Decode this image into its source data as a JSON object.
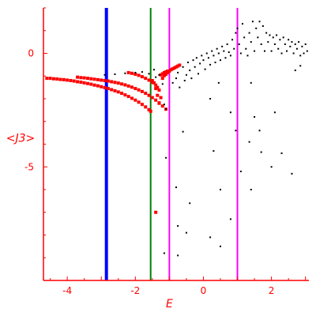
{
  "chart_data": {
    "type": "scatter",
    "title": "",
    "xlabel": "E",
    "ylabel": "<J3>",
    "xlim": [
      -4.7,
      3.1
    ],
    "ylim": [
      -10,
      2.0
    ],
    "x_ticks": [
      -4,
      -2,
      0,
      2
    ],
    "x_tick_labels": [
      "-4",
      "-2",
      "0",
      "2"
    ],
    "y_ticks": [
      0,
      -5
    ],
    "y_tick_labels": [
      "0",
      "-5"
    ],
    "grid": false,
    "legend": "none",
    "colors": {
      "axis": "#ff0000",
      "red_series": "#ff0000",
      "black_series": "#000000",
      "vline_blue": "#0000ff",
      "vline_green": "#008000",
      "vline_magenta": "#ff00ff"
    },
    "vertical_lines": [
      {
        "x": -2.85,
        "color": "#0000ff"
      },
      {
        "x": -1.55,
        "color": "#008000"
      },
      {
        "x": -1.0,
        "color": "#ff00ff"
      },
      {
        "x": 1.0,
        "color": "#ff00ff"
      }
    ],
    "series": [
      {
        "color": "#ff0000",
        "points": [
          [
            -4.6,
            -1.1
          ],
          [
            -4.5,
            -1.1
          ],
          [
            -4.4,
            -1.12
          ],
          [
            -4.3,
            -1.13
          ],
          [
            -4.2,
            -1.15
          ],
          [
            -4.1,
            -1.16
          ],
          [
            -4.0,
            -1.18
          ],
          [
            -3.9,
            -1.2
          ],
          [
            -3.8,
            -1.22
          ],
          [
            -3.7,
            -1.25
          ],
          [
            -3.6,
            -1.27
          ],
          [
            -3.5,
            -1.3
          ],
          [
            -3.4,
            -1.33
          ],
          [
            -3.3,
            -1.36
          ],
          [
            -3.2,
            -1.4
          ],
          [
            -3.1,
            -1.43
          ],
          [
            -3.0,
            -1.47
          ],
          [
            -2.9,
            -1.51
          ],
          [
            -2.8,
            -1.55
          ],
          [
            -2.7,
            -1.6
          ],
          [
            -2.6,
            -1.65
          ],
          [
            -2.5,
            -1.7
          ],
          [
            -2.4,
            -1.76
          ],
          [
            -2.3,
            -1.83
          ],
          [
            -2.2,
            -1.9
          ],
          [
            -2.1,
            -1.98
          ],
          [
            -2.0,
            -2.06
          ],
          [
            -1.9,
            -2.15
          ],
          [
            -1.8,
            -2.25
          ],
          [
            -1.7,
            -2.36
          ],
          [
            -1.6,
            -2.48
          ],
          [
            -1.55,
            -2.55
          ],
          [
            -3.7,
            -1.05
          ],
          [
            -3.6,
            -1.07
          ],
          [
            -3.5,
            -1.08
          ],
          [
            -3.4,
            -1.1
          ],
          [
            -3.3,
            -1.12
          ],
          [
            -3.2,
            -1.14
          ],
          [
            -3.1,
            -1.16
          ],
          [
            -3.0,
            -1.18
          ],
          [
            -2.9,
            -1.2
          ],
          [
            -2.8,
            -1.22
          ],
          [
            -2.7,
            -1.25
          ],
          [
            -2.6,
            -1.28
          ],
          [
            -2.5,
            -1.31
          ],
          [
            -2.4,
            -1.35
          ],
          [
            -2.3,
            -1.39
          ],
          [
            -2.2,
            -1.44
          ],
          [
            -2.1,
            -1.49
          ],
          [
            -2.0,
            -1.55
          ],
          [
            -1.9,
            -1.61
          ],
          [
            -1.8,
            -1.68
          ],
          [
            -1.7,
            -1.76
          ],
          [
            -1.6,
            -1.85
          ],
          [
            -1.5,
            -1.95
          ],
          [
            -1.4,
            -2.06
          ],
          [
            -1.3,
            -2.18
          ],
          [
            -1.2,
            -2.32
          ],
          [
            -1.1,
            -2.46
          ],
          [
            -2.2,
            -0.85
          ],
          [
            -2.1,
            -0.88
          ],
          [
            -2.0,
            -0.92
          ],
          [
            -1.9,
            -0.97
          ],
          [
            -1.8,
            -1.03
          ],
          [
            -1.7,
            -1.1
          ],
          [
            -1.6,
            -1.18
          ],
          [
            -1.5,
            -1.28
          ],
          [
            -1.4,
            -1.4
          ],
          [
            -1.35,
            -1.5
          ],
          [
            -1.3,
            -1.62
          ],
          [
            -1.5,
            -1.2
          ],
          [
            -1.45,
            -1.3
          ],
          [
            -1.4,
            -1.55
          ],
          [
            -1.35,
            -1.85
          ],
          [
            -1.3,
            -2.2
          ],
          [
            -1.25,
            -1.95
          ],
          [
            -1.2,
            -1.1
          ],
          [
            -1.15,
            -0.98
          ],
          [
            -1.1,
            -0.92
          ],
          [
            -1.05,
            -0.85
          ],
          [
            -1.0,
            -0.78
          ],
          [
            -0.95,
            -0.72
          ],
          [
            -0.9,
            -0.68
          ],
          [
            -0.85,
            -0.64
          ],
          [
            -0.8,
            -0.6
          ],
          [
            -0.75,
            -0.56
          ],
          [
            -0.7,
            -0.52
          ],
          [
            -1.25,
            -0.95
          ],
          [
            -1.2,
            -0.9
          ],
          [
            -1.15,
            -0.85
          ],
          [
            -1.1,
            -0.82
          ],
          [
            -1.05,
            -0.78
          ],
          [
            -1.4,
            -7.0
          ]
        ]
      },
      {
        "color": "#000000",
        "points": [
          [
            -2.9,
            -0.95
          ],
          [
            -2.6,
            -0.92
          ],
          [
            -2.3,
            -0.88
          ],
          [
            -2.0,
            -0.85
          ],
          [
            -1.8,
            -0.82
          ],
          [
            -1.6,
            -0.9
          ],
          [
            -1.45,
            -0.72
          ],
          [
            -1.4,
            -1.05
          ],
          [
            -1.3,
            -0.95
          ],
          [
            -1.2,
            -1.35
          ],
          [
            -1.15,
            -2.25
          ],
          [
            -1.1,
            -2.45
          ],
          [
            -0.9,
            -1.3
          ],
          [
            -0.8,
            -1.1
          ],
          [
            -0.75,
            -0.85
          ],
          [
            -0.7,
            -1.5
          ],
          [
            -0.6,
            -0.6
          ],
          [
            -0.55,
            -1.2
          ],
          [
            -0.5,
            -0.95
          ],
          [
            -0.45,
            -0.4
          ],
          [
            -0.4,
            -0.75
          ],
          [
            -0.35,
            -1.1
          ],
          [
            -0.3,
            -0.3
          ],
          [
            -0.25,
            -0.6
          ],
          [
            -0.2,
            -0.2
          ],
          [
            -0.15,
            -0.9
          ],
          [
            -0.1,
            -0.45
          ],
          [
            -0.05,
            -0.1
          ],
          [
            0.0,
            -0.3
          ],
          [
            0.05,
            -0.7
          ],
          [
            0.1,
            0.0
          ],
          [
            0.15,
            -0.2
          ],
          [
            0.2,
            -0.5
          ],
          [
            0.25,
            0.1
          ],
          [
            0.3,
            -0.1
          ],
          [
            0.35,
            -0.4
          ],
          [
            0.4,
            0.2
          ],
          [
            0.45,
            0.0
          ],
          [
            0.5,
            -0.3
          ],
          [
            0.55,
            0.3
          ],
          [
            0.6,
            0.1
          ],
          [
            0.65,
            -0.2
          ],
          [
            0.7,
            0.4
          ],
          [
            0.75,
            0.05
          ],
          [
            0.8,
            -0.1
          ],
          [
            0.85,
            0.6
          ],
          [
            0.9,
            0.2
          ],
          [
            0.95,
            0.9
          ],
          [
            1.0,
            1.1
          ],
          [
            1.05,
            0.4
          ],
          [
            1.1,
            0.0
          ],
          [
            1.15,
            1.3
          ],
          [
            1.2,
            0.7
          ],
          [
            1.25,
            0.2
          ],
          [
            1.3,
            -0.1
          ],
          [
            1.35,
            0.9
          ],
          [
            1.4,
            0.5
          ],
          [
            1.45,
            1.4
          ],
          [
            1.5,
            0.1
          ],
          [
            1.55,
            1.1
          ],
          [
            1.6,
            0.7
          ],
          [
            1.65,
            1.4
          ],
          [
            1.7,
            0.4
          ],
          [
            1.75,
            1.2
          ],
          [
            1.8,
            0.1
          ],
          [
            1.85,
            0.9
          ],
          [
            1.9,
            0.5
          ],
          [
            1.95,
            0.8
          ],
          [
            2.0,
            0.1
          ],
          [
            2.05,
            0.7
          ],
          [
            2.1,
            0.4
          ],
          [
            2.15,
            0.8
          ],
          [
            2.2,
            0.2
          ],
          [
            2.25,
            0.6
          ],
          [
            2.3,
            0.0
          ],
          [
            2.35,
            0.7
          ],
          [
            2.4,
            0.4
          ],
          [
            2.45,
            0.1
          ],
          [
            2.5,
            0.6
          ],
          [
            2.55,
            0.3
          ],
          [
            2.6,
            0.5
          ],
          [
            2.65,
            0.0
          ],
          [
            2.7,
            0.4
          ],
          [
            2.75,
            0.2
          ],
          [
            2.8,
            0.5
          ],
          [
            2.85,
            -0.1
          ],
          [
            2.9,
            0.3
          ],
          [
            2.95,
            0.0
          ],
          [
            3.0,
            0.4
          ],
          [
            3.05,
            0.1
          ],
          [
            2.7,
            -0.75
          ],
          [
            2.85,
            -0.55
          ],
          [
            1.4,
            -1.3
          ],
          [
            0.45,
            -1.3
          ],
          [
            0.2,
            -2.0
          ],
          [
            0.8,
            -2.6
          ],
          [
            1.5,
            -2.8
          ],
          [
            2.1,
            -2.6
          ],
          [
            1.65,
            -3.4
          ],
          [
            -0.6,
            -3.45
          ],
          [
            0.95,
            -3.4
          ],
          [
            1.35,
            -3.9
          ],
          [
            0.3,
            -4.3
          ],
          [
            1.7,
            -4.35
          ],
          [
            2.3,
            -4.4
          ],
          [
            -1.1,
            -4.6
          ],
          [
            2.0,
            -5.0
          ],
          [
            1.1,
            -5.2
          ],
          [
            2.6,
            -5.3
          ],
          [
            -0.8,
            -5.9
          ],
          [
            0.5,
            -6.0
          ],
          [
            1.4,
            -6.0
          ],
          [
            -0.4,
            -6.6
          ],
          [
            0.8,
            -7.3
          ],
          [
            -0.75,
            -7.6
          ],
          [
            -0.5,
            -7.9
          ],
          [
            0.2,
            -8.1
          ],
          [
            0.5,
            -8.5
          ],
          [
            -1.15,
            -8.8
          ],
          [
            -0.75,
            -8.9
          ]
        ]
      }
    ]
  }
}
